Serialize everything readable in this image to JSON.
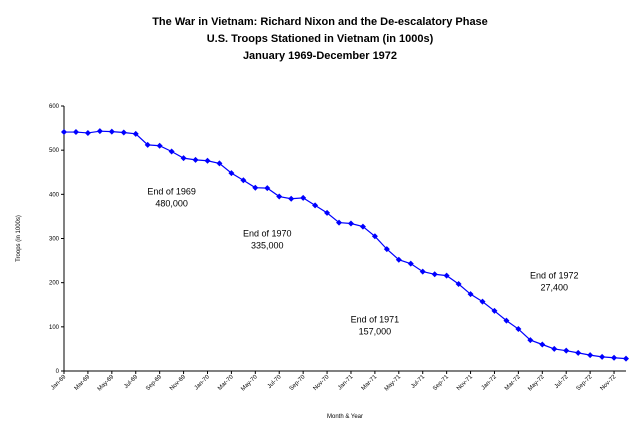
{
  "chart_data": {
    "type": "line",
    "title": "The War in Vietnam: Richard Nixon and the De-escalatory Phase",
    "subtitle": "U.S. Troops Stationed in Vietnam (in 1000s)",
    "subtitle2": "January 1969-December 1972",
    "xlabel": "Month & Year",
    "ylabel": "Troops (in 1000s)",
    "ylim": [
      0,
      600
    ],
    "yticks": [
      "0",
      "100",
      "200",
      "300",
      "400",
      "500",
      "600"
    ],
    "xtick_labels": [
      "Jan-69",
      "Mar-69",
      "May-69",
      "Jul-69",
      "Sep-69",
      "Nov-69",
      "Jan-70",
      "Mar-70",
      "May-70",
      "Jul-70",
      "Sep-70",
      "Nov-70",
      "Jan-71",
      "Mar-71",
      "May-71",
      "Jul-71",
      "Sep-71",
      "Nov-71",
      "Jan-72",
      "Mar-72",
      "May-72",
      "Jul-72",
      "Sep-72",
      "Nov-72"
    ],
    "grid": false,
    "legend": "none",
    "marker_color": "#0000ff",
    "line_color": "#0000ff",
    "x": [
      "Jan-69",
      "Feb-69",
      "Mar-69",
      "Apr-69",
      "May-69",
      "Jun-69",
      "Jul-69",
      "Aug-69",
      "Sep-69",
      "Oct-69",
      "Nov-69",
      "Dec-69",
      "Jan-70",
      "Feb-70",
      "Mar-70",
      "Apr-70",
      "May-70",
      "Jun-70",
      "Jul-70",
      "Aug-70",
      "Sep-70",
      "Oct-70",
      "Nov-70",
      "Dec-70",
      "Jan-71",
      "Feb-71",
      "Mar-71",
      "Apr-71",
      "May-71",
      "Jun-71",
      "Jul-71",
      "Aug-71",
      "Sep-71",
      "Oct-71",
      "Nov-71",
      "Dec-71",
      "Jan-72",
      "Feb-72",
      "Mar-72",
      "Apr-72",
      "May-72",
      "Jun-72",
      "Jul-72",
      "Aug-72",
      "Sep-72",
      "Oct-72",
      "Nov-72",
      "Dec-72"
    ],
    "series": [
      {
        "values": [
          541,
          541,
          539,
          543,
          542,
          540,
          537,
          512,
          510,
          497,
          482,
          478,
          476,
          470,
          448,
          432,
          415,
          414,
          395,
          390,
          392,
          375,
          358,
          336,
          334,
          327,
          305,
          276,
          252,
          243,
          225,
          219,
          216,
          197,
          174,
          157,
          136,
          114,
          95,
          70,
          60,
          50,
          46,
          41,
          36,
          32,
          30,
          28
        ]
      }
    ],
    "annotations": [
      {
        "line1": "End of 1969",
        "line2": "480,000",
        "x": "Oct-69",
        "y": 400
      },
      {
        "line1": "End of 1970",
        "line2": "335,000",
        "x": "Jun-70",
        "y": 305
      },
      {
        "line1": "End of 1971",
        "line2": "157,000",
        "x": "Mar-71",
        "y": 110
      },
      {
        "line1": "End of 1972",
        "line2": "27,400",
        "x": "Jun-72",
        "y": 210
      }
    ]
  }
}
